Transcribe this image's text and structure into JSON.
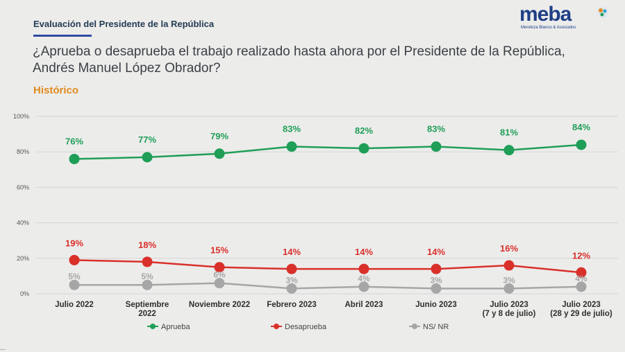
{
  "header": {
    "title": "Evaluación del Presidente de la República",
    "logo": {
      "word": "meba",
      "sub": "Mendoza Blanco & Asociados"
    }
  },
  "question": "¿Aprueba o desaprueba el trabajo realizado hasta ahora por el Presidente de la República, Andrés Manuel López Obrador?",
  "subtitle": "Histórico",
  "footer_note": "...",
  "colors": {
    "aprueba": "#1f9e57",
    "desaprueba": "#d9302a",
    "nsnr": "#a6a6a6",
    "grid": "#d2d4d6",
    "accent": "#e08a1e"
  },
  "chart_data": {
    "type": "line",
    "categories": [
      [
        "Julio 2022"
      ],
      [
        "Septiembre",
        "2022"
      ],
      [
        "Noviembre 2022"
      ],
      [
        "Febrero 2023"
      ],
      [
        "Abril 2023"
      ],
      [
        "Junio 2023"
      ],
      [
        "Julio 2023",
        "(7 y 8 de julio)"
      ],
      [
        "Julio 2023",
        "(28 y 29 de julio)"
      ]
    ],
    "series": [
      {
        "name": "Aprueba",
        "values": [
          76,
          77,
          79,
          83,
          82,
          83,
          81,
          84
        ],
        "labels": [
          "76%",
          "77%",
          "79%",
          "83%",
          "82%",
          "83%",
          "81%",
          "84%"
        ]
      },
      {
        "name": "Desaprueba",
        "values": [
          19,
          18,
          15,
          14,
          14,
          14,
          16,
          12
        ],
        "labels": [
          "19%",
          "18%",
          "15%",
          "14%",
          "14%",
          "14%",
          "16%",
          "12%"
        ]
      },
      {
        "name": "NS/ NR",
        "values": [
          5,
          5,
          6,
          3,
          4,
          3,
          3,
          4
        ],
        "labels": [
          "5%",
          "5%",
          "6%",
          "3%",
          "4%",
          "3%",
          "3%",
          "4%"
        ]
      }
    ],
    "yticks": [
      "0%",
      "20%",
      "40%",
      "60%",
      "80%",
      "100%"
    ],
    "ylim": [
      0,
      100
    ],
    "grid": true,
    "legend": "bottom"
  }
}
